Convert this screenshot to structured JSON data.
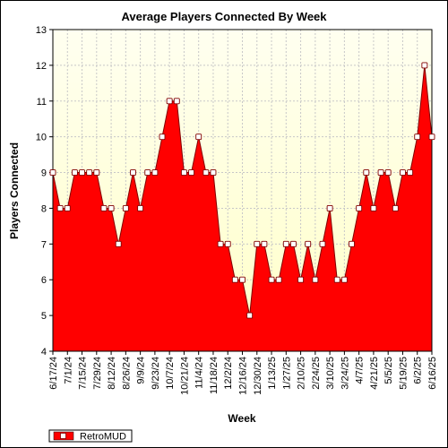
{
  "chart_data": {
    "type": "area",
    "title": "Average Players Connected By Week",
    "xlabel": "Week",
    "ylabel": "Players Connected",
    "ylim": [
      4,
      13
    ],
    "yticks": [
      4,
      5,
      6,
      7,
      8,
      9,
      10,
      11,
      12,
      13
    ],
    "x": [
      "6/17/24",
      "6/24/24",
      "7/1/24",
      "7/8/24",
      "7/15/24",
      "7/22/24",
      "7/29/24",
      "8/5/24",
      "8/12/24",
      "8/19/24",
      "8/26/24",
      "9/2/24",
      "9/9/24",
      "9/16/24",
      "9/23/24",
      "9/30/24",
      "10/7/24",
      "10/14/24",
      "10/21/24",
      "10/28/24",
      "11/4/24",
      "11/11/24",
      "11/18/24",
      "11/25/24",
      "12/2/24",
      "12/9/24",
      "12/16/24",
      "12/23/24",
      "12/30/24",
      "1/6/25",
      "1/13/25",
      "1/20/25",
      "1/27/25",
      "2/3/25",
      "2/10/25",
      "2/17/25",
      "2/24/25",
      "3/3/25",
      "3/10/25",
      "3/17/25",
      "3/24/25",
      "3/31/25",
      "4/7/25",
      "4/14/25",
      "4/21/25",
      "4/28/25",
      "5/5/25",
      "5/12/25",
      "5/19/25",
      "5/26/25",
      "6/2/25",
      "6/9/25",
      "6/16/25"
    ],
    "x_tick_labels": [
      "6/17/24",
      "7/1/24",
      "7/15/24",
      "7/29/24",
      "8/12/24",
      "8/26/24",
      "9/9/24",
      "9/23/24",
      "10/7/24",
      "10/21/24",
      "11/4/24",
      "11/18/24",
      "12/2/24",
      "12/16/24",
      "12/30/24",
      "1/13/25",
      "1/27/25",
      "2/10/25",
      "2/24/25",
      "3/10/25",
      "3/24/25",
      "4/7/25",
      "4/21/25",
      "5/5/25",
      "5/19/25",
      "6/2/25",
      "6/16/25"
    ],
    "series": [
      {
        "name": "RetroMUD",
        "color": "#ff0000",
        "values": [
          9,
          8,
          8,
          9,
          9,
          9,
          9,
          8,
          8,
          7,
          8,
          9,
          8,
          9,
          9,
          10,
          11,
          11,
          9,
          9,
          10,
          9,
          9,
          7,
          7,
          6,
          6,
          5,
          7,
          7,
          6,
          6,
          7,
          7,
          6,
          7,
          6,
          7,
          8,
          6,
          6,
          7,
          8,
          9,
          8,
          9,
          9,
          8,
          9,
          9,
          10,
          12,
          10
        ]
      }
    ],
    "grid": true,
    "legend": "bottom-left"
  }
}
